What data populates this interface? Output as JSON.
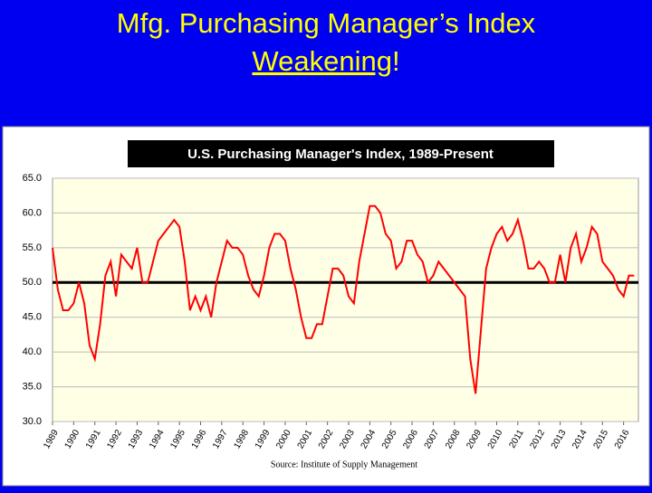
{
  "slide": {
    "title_line1": "Mfg. Purchasing Manager’s Index",
    "title_emphasis": "Weakening",
    "title_end": "!"
  },
  "chart_data": {
    "type": "line",
    "title": "U.S. Purchasing Manager's Index, 1989-Present",
    "source": "Source: Institute of Supply Management",
    "color": "#ff0000",
    "x": [
      1989,
      1989.25,
      1989.5,
      1989.75,
      1990,
      1990.25,
      1990.5,
      1990.75,
      1991,
      1991.25,
      1991.5,
      1991.75,
      1992,
      1992.25,
      1992.5,
      1992.75,
      1993,
      1993.25,
      1993.5,
      1993.75,
      1994,
      1994.25,
      1994.5,
      1994.75,
      1995,
      1995.25,
      1995.5,
      1995.75,
      1996,
      1996.25,
      1996.5,
      1996.75,
      1997,
      1997.25,
      1997.5,
      1997.75,
      1998,
      1998.25,
      1998.5,
      1998.75,
      1999,
      1999.25,
      1999.5,
      1999.75,
      2000,
      2000.25,
      2000.5,
      2000.75,
      2001,
      2001.25,
      2001.5,
      2001.75,
      2002,
      2002.25,
      2002.5,
      2002.75,
      2003,
      2003.25,
      2003.5,
      2003.75,
      2004,
      2004.25,
      2004.5,
      2004.75,
      2005,
      2005.25,
      2005.5,
      2005.75,
      2006,
      2006.25,
      2006.5,
      2006.75,
      2007,
      2007.25,
      2007.5,
      2007.75,
      2008,
      2008.25,
      2008.5,
      2008.75,
      2009,
      2009.25,
      2009.5,
      2009.75,
      2010,
      2010.25,
      2010.5,
      2010.75,
      2011,
      2011.25,
      2011.5,
      2011.75,
      2012,
      2012.25,
      2012.5,
      2012.75,
      2013,
      2013.25,
      2013.5,
      2013.75,
      2014,
      2014.25,
      2014.5,
      2014.75,
      2015,
      2015.25,
      2015.5,
      2015.75,
      2016,
      2016.25,
      2016.5
    ],
    "values": [
      55,
      49,
      46,
      46,
      47,
      50,
      47,
      41,
      39,
      44,
      51,
      53,
      48,
      54,
      53,
      52,
      55,
      50,
      50,
      53,
      56,
      57,
      58,
      59,
      58,
      53,
      46,
      48,
      46,
      48,
      45,
      50,
      53,
      56,
      55,
      55,
      54,
      51,
      49,
      48,
      51,
      55,
      57,
      57,
      56,
      52,
      49,
      45,
      42,
      42,
      44,
      44,
      48,
      52,
      52,
      51,
      48,
      47,
      53,
      57,
      61,
      61,
      60,
      57,
      56,
      52,
      53,
      56,
      56,
      54,
      53,
      50,
      51,
      53,
      52,
      51,
      50,
      49,
      48,
      39,
      34,
      43,
      52,
      55,
      57,
      58,
      56,
      57,
      59,
      56,
      52,
      52,
      53,
      52,
      50,
      50,
      54,
      50,
      55,
      57,
      53,
      55,
      58,
      57,
      53,
      52,
      51,
      49,
      48,
      51,
      51
    ],
    "xlim": [
      1989,
      2016.7
    ],
    "xticks": [
      1989,
      1990,
      1991,
      1992,
      1993,
      1994,
      1995,
      1996,
      1997,
      1998,
      1999,
      2000,
      2001,
      2002,
      2003,
      2004,
      2005,
      2006,
      2007,
      2008,
      2009,
      2010,
      2011,
      2012,
      2013,
      2014,
      2015,
      2016
    ],
    "ylim": [
      30,
      65
    ],
    "yticks": [
      {
        "value": 30,
        "label": "30.0"
      },
      {
        "value": 35,
        "label": "35.0"
      },
      {
        "value": 40,
        "label": "40.0"
      },
      {
        "value": 45,
        "label": "45.0"
      },
      {
        "value": 50,
        "label": "50.0"
      },
      {
        "value": 55,
        "label": "55.0"
      },
      {
        "value": 60,
        "label": "60.0"
      },
      {
        "value": 65,
        "label": "65.0"
      }
    ],
    "reference_line": 50,
    "grid": true
  }
}
